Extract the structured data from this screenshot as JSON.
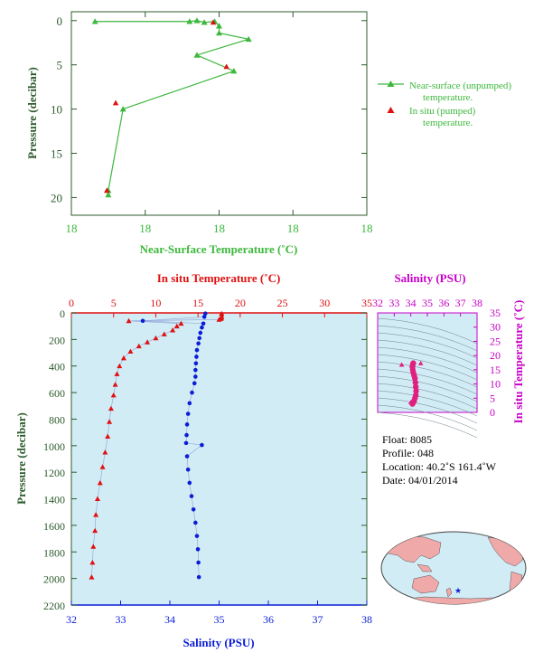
{
  "colors": {
    "green": "#3db83d",
    "red": "#e01010",
    "blue": "#0b1ed6",
    "magenta": "#c800c8",
    "pink": "#e0207f",
    "axis_dark": "#2d5b2d",
    "panel_bg": "#d2ecf6",
    "grid": "#6a7f8a"
  },
  "chart_data": [
    {
      "type": "line",
      "xlabel": "Near-Surface Temperature (˚C)",
      "ylabel": "Pressure (decibar)",
      "x_tick_labels": [
        "18",
        "18",
        "18",
        "18",
        "18"
      ],
      "y_ticks": [
        0,
        5,
        10,
        15,
        20
      ],
      "xlim": [
        17.2,
        19.2
      ],
      "ylim": [
        22,
        -1
      ],
      "legend_placement": "right",
      "series": [
        {
          "name": "Near-surface (unpumped) temperature.",
          "marker": "triangle",
          "x": [
            17.36,
            18.0,
            18.05,
            18.1,
            18.17,
            18.2,
            18.2,
            18.4,
            18.05,
            18.3,
            17.55,
            17.45,
            17.45
          ],
          "y": [
            0.1,
            0.1,
            0.0,
            0.2,
            0.1,
            0.6,
            1.4,
            2.1,
            3.9,
            5.7,
            10.0,
            19.2,
            19.7
          ]
        },
        {
          "name": "In situ (pumped) temperature.",
          "marker": "triangle",
          "x": [
            18.16,
            18.25,
            17.5,
            17.44
          ],
          "y": [
            0.2,
            5.2,
            9.3,
            19.2
          ]
        }
      ]
    },
    {
      "type": "scatter",
      "ylabel": "Pressure (decibar)",
      "x_top_label": "In situ Temperature (˚C)",
      "x_top_ticks": [
        0,
        5,
        10,
        15,
        20,
        25,
        30,
        35
      ],
      "x_bottom_label": "Salinity (PSU)",
      "x_bottom_ticks": [
        32,
        33,
        34,
        35,
        36,
        37,
        38
      ],
      "y_ticks": [
        0,
        200,
        400,
        600,
        800,
        1000,
        1200,
        1400,
        1600,
        1800,
        2000,
        2200
      ],
      "ylim": [
        2200,
        0
      ],
      "series": [
        {
          "name": "In situ Temperature (˚C)",
          "marker": "triangle",
          "x": [
            17.8,
            17.8,
            17.5,
            6.8,
            13.0,
            12.5,
            12.0,
            11.0,
            10.0,
            9.0,
            8.0,
            7.0,
            6.2,
            5.7,
            5.4,
            5.2,
            5.0,
            4.7,
            4.5,
            4.3,
            4.0,
            3.7,
            3.4,
            3.1,
            2.9,
            2.8,
            2.6,
            2.5,
            2.4
          ],
          "y": [
            5,
            30,
            50,
            60,
            80,
            100,
            130,
            160,
            190,
            220,
            250,
            290,
            340,
            400,
            460,
            540,
            620,
            720,
            820,
            930,
            1050,
            1160,
            1280,
            1400,
            1520,
            1640,
            1760,
            1880,
            1990
          ]
        },
        {
          "name": "Salinity (PSU)",
          "marker": "dot",
          "x": [
            34.72,
            34.7,
            33.45,
            34.68,
            34.65,
            34.62,
            34.6,
            34.58,
            34.55,
            34.54,
            34.53,
            34.52,
            34.52,
            34.5,
            34.45,
            34.4,
            34.37,
            34.35,
            34.34,
            34.33,
            34.65,
            34.35,
            34.37,
            34.4,
            34.44,
            34.48,
            34.52,
            34.55,
            34.57,
            34.58,
            34.59
          ],
          "y": [
            5,
            30,
            60,
            80,
            110,
            150,
            190,
            230,
            280,
            330,
            380,
            430,
            480,
            530,
            600,
            680,
            760,
            840,
            920,
            980,
            995,
            1080,
            1180,
            1280,
            1380,
            1480,
            1580,
            1680,
            1780,
            1880,
            1990
          ]
        }
      ]
    },
    {
      "type": "scatter",
      "x_top_label": "Salinity (PSU)",
      "x_ticks": [
        32,
        33,
        34,
        35,
        36,
        37,
        38
      ],
      "y_right_label": "In situ Temperature (˚C)",
      "y_ticks": [
        0,
        5,
        10,
        15,
        20,
        25,
        30,
        35
      ],
      "xlim": [
        32,
        38
      ],
      "ylim": [
        0,
        35
      ],
      "grid": "density contours",
      "series": [
        {
          "name": "T-S profile",
          "x": [
            34.1,
            34.15,
            34.2,
            34.25,
            34.3,
            34.32,
            34.3,
            34.28,
            34.25,
            34.2,
            34.15,
            34.12,
            34.1,
            34.12,
            34.15
          ],
          "y": [
            3,
            3.5,
            4,
            5,
            6,
            7.5,
            9,
            10.5,
            12,
            13,
            14,
            15,
            16,
            16.8,
            17.3
          ]
        },
        {
          "name": "outliers",
          "x": [
            33.45,
            34.0,
            34.6
          ],
          "y": [
            16.8,
            3.6,
            17.3
          ]
        }
      ]
    }
  ],
  "float_info": {
    "float": "Float:  8085",
    "profile": "Profile:  048",
    "location": "Location:  40.2˚S  161.4˚W",
    "date": "Date:  04/01/2014"
  },
  "map": {
    "marker_symbol": "★",
    "marker_lon": -161.4,
    "marker_lat": -40.2
  }
}
